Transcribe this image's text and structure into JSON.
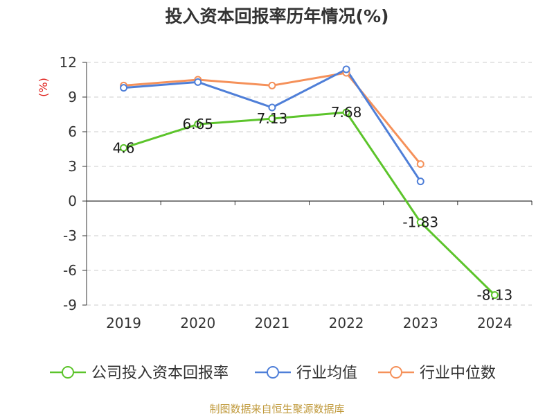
{
  "title": "投入资本回报率历年情况(%)",
  "source": "制图数据来自恒生聚源数据库",
  "chart_data": {
    "type": "line",
    "title": "投入资本回报率历年情况(%)",
    "ylabel": "(%)",
    "xlabel": "",
    "categories": [
      "2019",
      "2020",
      "2021",
      "2022",
      "2023",
      "2024"
    ],
    "ylim": [
      -9,
      12
    ],
    "yticks": [
      12,
      9,
      6,
      3,
      0,
      -3,
      -6,
      -9
    ],
    "grid": true,
    "legend_position": "bottom",
    "series": [
      {
        "name": "公司投入资本回报率",
        "color": "#5cc42b",
        "values": [
          4.6,
          6.65,
          7.13,
          7.68,
          -1.83,
          -8.13
        ],
        "labels": [
          "4.6",
          "6.65",
          "7.13",
          "7.68",
          "-1.83",
          "-8.13"
        ]
      },
      {
        "name": "行业均值",
        "color": "#4f7fd8",
        "values": [
          9.8,
          10.3,
          8.1,
          11.4,
          1.7,
          null
        ]
      },
      {
        "name": "行业中位数",
        "color": "#f5915a",
        "values": [
          10.0,
          10.5,
          10.0,
          11.1,
          3.2,
          null
        ]
      }
    ]
  }
}
